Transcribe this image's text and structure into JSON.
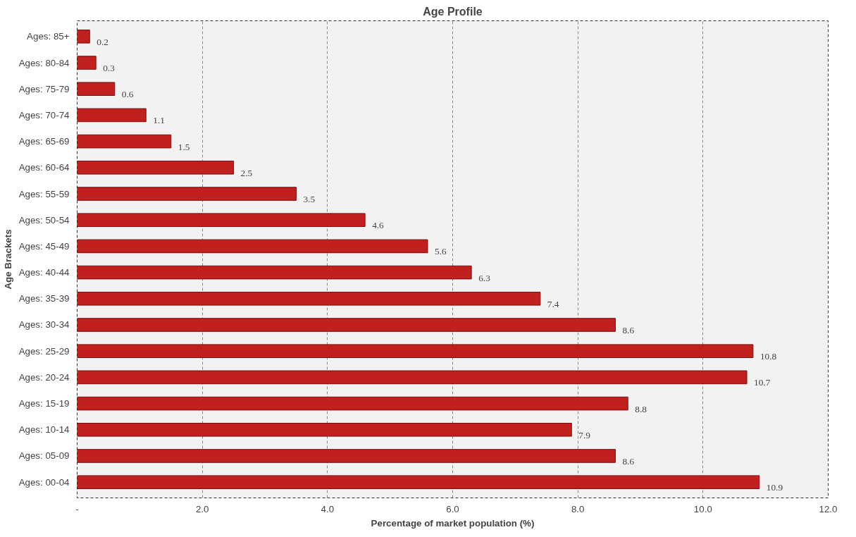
{
  "chart_data": {
    "type": "bar",
    "orientation": "horizontal",
    "title": "Age Profile",
    "xlabel": "Percentage of market population (%)",
    "ylabel": "Age Brackets",
    "categories": [
      "Ages: 85+",
      "Ages: 80-84",
      "Ages: 75-79",
      "Ages: 70-74",
      "Ages: 65-69",
      "Ages: 60-64",
      "Ages: 55-59",
      "Ages: 50-54",
      "Ages: 45-49",
      "Ages: 40-44",
      "Ages: 35-39",
      "Ages: 30-34",
      "Ages: 25-29",
      "Ages: 20-24",
      "Ages: 15-19",
      "Ages: 10-14",
      "Ages: 05-09",
      "Ages: 00-04"
    ],
    "values": [
      0.2,
      0.3,
      0.6,
      1.1,
      1.5,
      2.5,
      3.5,
      4.6,
      5.6,
      6.3,
      7.4,
      8.6,
      10.8,
      10.7,
      8.8,
      7.9,
      8.6,
      10.9
    ],
    "color": "#c0201e",
    "data_labels": true,
    "grid": "x",
    "xlim": [
      0,
      12
    ],
    "xticks": [
      {
        "value": 0,
        "label": "-"
      },
      {
        "value": 2,
        "label": "2.0"
      },
      {
        "value": 4,
        "label": "4.0"
      },
      {
        "value": 6,
        "label": "6.0"
      },
      {
        "value": 8,
        "label": "8.0"
      },
      {
        "value": 10,
        "label": "10.0"
      },
      {
        "value": 12,
        "label": "12.0"
      }
    ]
  }
}
